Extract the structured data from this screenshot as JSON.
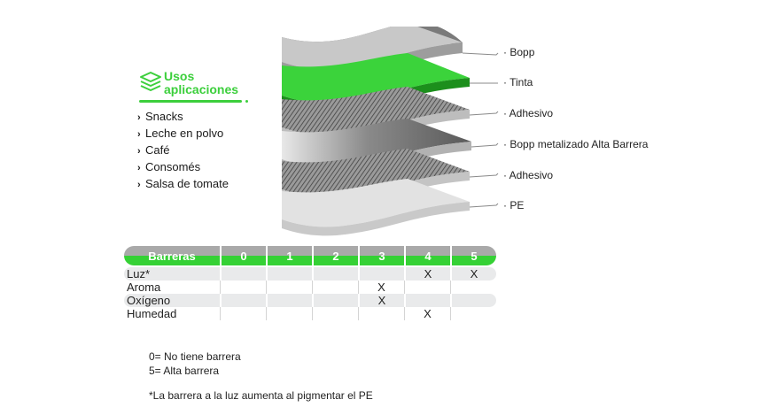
{
  "uses": {
    "title_line1": "Usos",
    "title_line2": "aplicaciones",
    "items": [
      "Snacks",
      "Leche en polvo",
      "Café",
      "Consomés",
      "Salsa de tomate"
    ]
  },
  "layers": {
    "labels": [
      "Bopp",
      "Tinta",
      "Adhesivo",
      "Bopp metalizado Alta Barrera",
      "Adhesivo",
      "PE"
    ]
  },
  "barriers": {
    "header": "Barreras",
    "levels": [
      "0",
      "1",
      "2",
      "3",
      "4",
      "5"
    ],
    "rows": [
      {
        "name": "Luz*",
        "marks": [
          "",
          "",
          "",
          "",
          "X",
          "X"
        ]
      },
      {
        "name": "Aroma",
        "marks": [
          "",
          "",
          "",
          "X",
          "",
          ""
        ]
      },
      {
        "name": "Oxígeno",
        "marks": [
          "",
          "",
          "",
          "X",
          "",
          ""
        ]
      },
      {
        "name": "Humedad",
        "marks": [
          "",
          "",
          "",
          "",
          "X",
          ""
        ]
      }
    ]
  },
  "notes": {
    "legend_0": "0= No tiene barrera",
    "legend_5": "5= Alta barrera",
    "footnote": "*La barrera a la luz aumenta al pigmentar el PE"
  },
  "colors": {
    "accent": "#3ccf3c",
    "header_gray": "#a9a9a9",
    "row_shade": "#e9eaeb"
  }
}
